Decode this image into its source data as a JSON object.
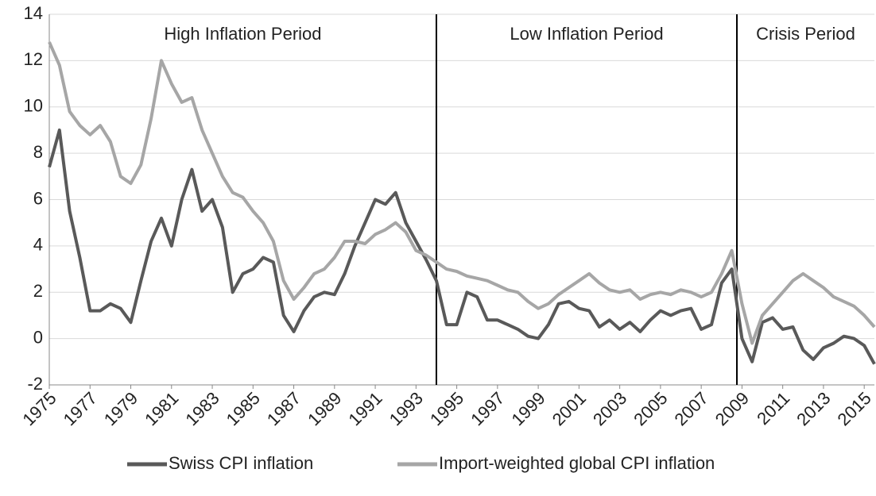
{
  "chart_data": {
    "type": "line",
    "x": [
      1975,
      1975.5,
      1976,
      1976.5,
      1977,
      1977.5,
      1978,
      1978.5,
      1979,
      1979.5,
      1980,
      1980.5,
      1981,
      1981.5,
      1982,
      1982.5,
      1983,
      1983.5,
      1984,
      1984.5,
      1985,
      1985.5,
      1986,
      1986.5,
      1987,
      1987.5,
      1988,
      1988.5,
      1989,
      1989.5,
      1990,
      1990.5,
      1991,
      1991.5,
      1992,
      1992.5,
      1993,
      1993.5,
      1994,
      1994.5,
      1995,
      1995.5,
      1996,
      1996.5,
      1997,
      1997.5,
      1998,
      1998.5,
      1999,
      1999.5,
      2000,
      2000.5,
      2001,
      2001.5,
      2002,
      2002.5,
      2003,
      2003.5,
      2004,
      2004.5,
      2005,
      2005.5,
      2006,
      2006.5,
      2007,
      2007.5,
      2008,
      2008.5,
      2009,
      2009.5,
      2010,
      2010.5,
      2011,
      2011.5,
      2012,
      2012.5,
      2013,
      2013.5,
      2014,
      2014.5,
      2015,
      2015.5
    ],
    "series": [
      {
        "name": "Swiss CPI inflation",
        "color": "#595959",
        "values": [
          7.4,
          9.0,
          5.5,
          3.5,
          1.2,
          1.2,
          1.5,
          1.3,
          0.7,
          2.5,
          4.2,
          5.2,
          4.0,
          6.0,
          7.3,
          5.5,
          6.0,
          4.8,
          2.0,
          2.8,
          3.0,
          3.5,
          3.3,
          1.0,
          0.3,
          1.2,
          1.8,
          2.0,
          1.9,
          2.8,
          4.0,
          5.0,
          6.0,
          5.8,
          6.3,
          5.0,
          4.2,
          3.4,
          2.5,
          0.6,
          0.6,
          2.0,
          1.8,
          0.8,
          0.8,
          0.6,
          0.4,
          0.1,
          0.0,
          0.6,
          1.5,
          1.6,
          1.3,
          1.2,
          0.5,
          0.8,
          0.4,
          0.7,
          0.3,
          0.8,
          1.2,
          1.0,
          1.2,
          1.3,
          0.4,
          0.6,
          2.4,
          3.0,
          0.0,
          -1.0,
          0.7,
          0.9,
          0.4,
          0.5,
          -0.5,
          -0.9,
          -0.4,
          -0.2,
          0.1,
          0.0,
          -0.3,
          -1.1
        ]
      },
      {
        "name": "Import-weighted global CPI inflation",
        "color": "#a6a6a6",
        "values": [
          12.8,
          11.8,
          9.8,
          9.2,
          8.8,
          9.2,
          8.5,
          7.0,
          6.7,
          7.5,
          9.5,
          12.0,
          11.0,
          10.2,
          10.4,
          9.0,
          8.0,
          7.0,
          6.3,
          6.1,
          5.5,
          5.0,
          4.2,
          2.5,
          1.7,
          2.2,
          2.8,
          3.0,
          3.5,
          4.2,
          4.2,
          4.1,
          4.5,
          4.7,
          5.0,
          4.6,
          3.8,
          3.6,
          3.3,
          3.0,
          2.9,
          2.7,
          2.6,
          2.5,
          2.3,
          2.1,
          2.0,
          1.6,
          1.3,
          1.5,
          1.9,
          2.2,
          2.5,
          2.8,
          2.4,
          2.1,
          2.0,
          2.1,
          1.7,
          1.9,
          2.0,
          1.9,
          2.1,
          2.0,
          1.8,
          2.0,
          2.8,
          3.8,
          1.5,
          -0.2,
          1.0,
          1.5,
          2.0,
          2.5,
          2.8,
          2.5,
          2.2,
          1.8,
          1.6,
          1.4,
          1.0,
          0.5
        ]
      }
    ],
    "xlim": [
      1975,
      2015.5
    ],
    "xticks": [
      1975,
      1977,
      1979,
      1981,
      1983,
      1985,
      1987,
      1989,
      1991,
      1993,
      1995,
      1997,
      1999,
      2001,
      2003,
      2005,
      2007,
      2009,
      2011,
      2013,
      2015
    ],
    "ylim": [
      -2,
      14
    ],
    "yticks": [
      -2,
      0,
      2,
      4,
      6,
      8,
      10,
      12,
      14
    ],
    "grid": true,
    "dividers": [
      1994,
      2008.75
    ],
    "annotations": [
      "High Inflation Period",
      "Low Inflation Period",
      "Crisis Period"
    ],
    "legend": "bottom"
  }
}
